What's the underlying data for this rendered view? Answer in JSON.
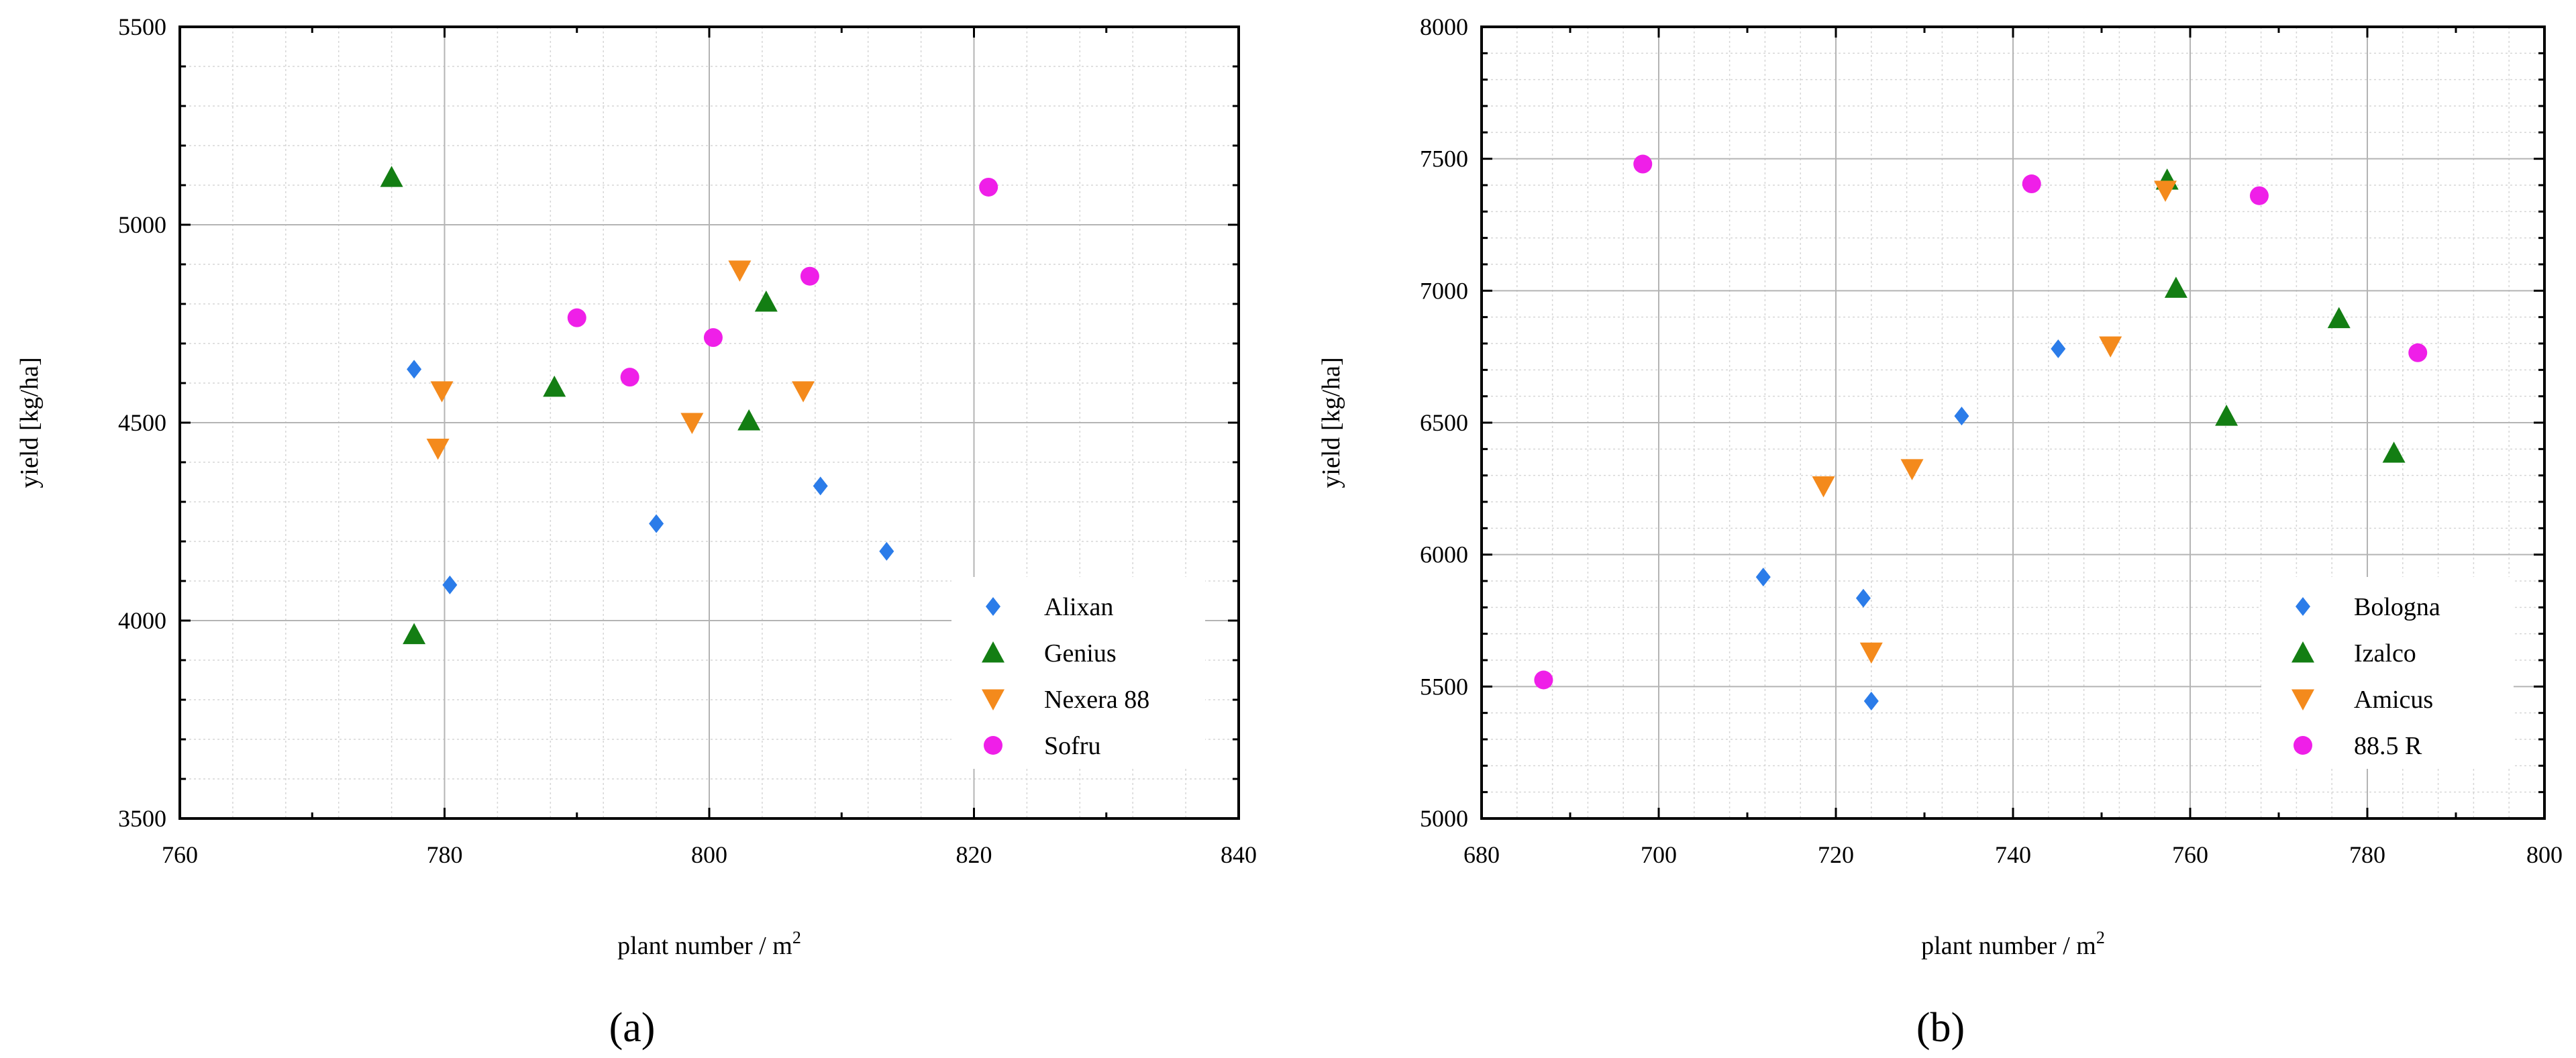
{
  "chart_data": [
    {
      "type": "scatter",
      "panel_label": "(a)",
      "xlabel": "plant number / m",
      "xlabel_sup": "2",
      "ylabel": "yield [kg/ha]",
      "xlim": [
        760,
        840
      ],
      "ylim": [
        3500,
        5500
      ],
      "xticks": [
        "760",
        "780",
        "800",
        "820",
        "840"
      ],
      "yticks": [
        "3500",
        "4000",
        "4500",
        "5000",
        "5500"
      ],
      "legend_position": "bottom-right",
      "series": [
        {
          "name": "Alixan",
          "marker": "diamond",
          "color": "#2b7ce9",
          "points": [
            [
              777.7,
              4635
            ],
            [
              780.4,
              4090
            ],
            [
              796.0,
              4245
            ],
            [
              808.4,
              4340
            ],
            [
              813.4,
              4175
            ]
          ]
        },
        {
          "name": "Genius",
          "marker": "triangle-up",
          "color": "#137e13",
          "points": [
            [
              776.0,
              5120
            ],
            [
              777.7,
              3965
            ],
            [
              788.3,
              4590
            ],
            [
              803.0,
              4505
            ],
            [
              804.3,
              4805
            ]
          ]
        },
        {
          "name": "Nexera 88",
          "marker": "triangle-down",
          "color": "#f48a1c",
          "points": [
            [
              779.8,
              4580
            ],
            [
              779.5,
              4435
            ],
            [
              798.7,
              4500
            ],
            [
              802.3,
              4885
            ],
            [
              807.1,
              4580
            ]
          ]
        },
        {
          "name": "Sofru",
          "marker": "circle",
          "color": "#ef1fe8",
          "points": [
            [
              790.0,
              4765
            ],
            [
              794.0,
              4615
            ],
            [
              800.3,
              4715
            ],
            [
              807.6,
              4870
            ],
            [
              821.1,
              5095
            ]
          ]
        }
      ]
    },
    {
      "type": "scatter",
      "panel_label": "(b)",
      "xlabel": "plant number / m",
      "xlabel_sup": "2",
      "ylabel": "yield [kg/ha]",
      "xlim": [
        680,
        800
      ],
      "ylim": [
        5000,
        8000
      ],
      "xticks": [
        "680",
        "700",
        "720",
        "740",
        "760",
        "780",
        "800"
      ],
      "yticks": [
        "5000",
        "5500",
        "6000",
        "6500",
        "7000",
        "7500",
        "8000"
      ],
      "legend_position": "bottom-right",
      "series": [
        {
          "name": "Bologna",
          "marker": "diamond",
          "color": "#2b7ce9",
          "points": [
            [
              711.8,
              5915
            ],
            [
              723.1,
              5835
            ],
            [
              724.0,
              5445
            ],
            [
              734.2,
              6525
            ],
            [
              745.1,
              6780
            ]
          ]
        },
        {
          "name": "Izalco",
          "marker": "triangle-up",
          "color": "#137e13",
          "points": [
            [
              757.4,
              7420
            ],
            [
              758.4,
              7010
            ],
            [
              764.1,
              6525
            ],
            [
              776.8,
              6895
            ],
            [
              783.0,
              6385
            ]
          ]
        },
        {
          "name": "Amicus",
          "marker": "triangle-down",
          "color": "#f48a1c",
          "points": [
            [
              718.6,
              6260
            ],
            [
              724.0,
              5630
            ],
            [
              728.6,
              6325
            ],
            [
              751.0,
              6790
            ],
            [
              757.2,
              7380
            ]
          ]
        },
        {
          "name": "88.5 R",
          "marker": "circle",
          "color": "#ef1fe8",
          "points": [
            [
              687.0,
              5525
            ],
            [
              698.2,
              7480
            ],
            [
              742.1,
              7405
            ],
            [
              767.8,
              7360
            ],
            [
              785.7,
              6765
            ]
          ]
        }
      ]
    }
  ]
}
